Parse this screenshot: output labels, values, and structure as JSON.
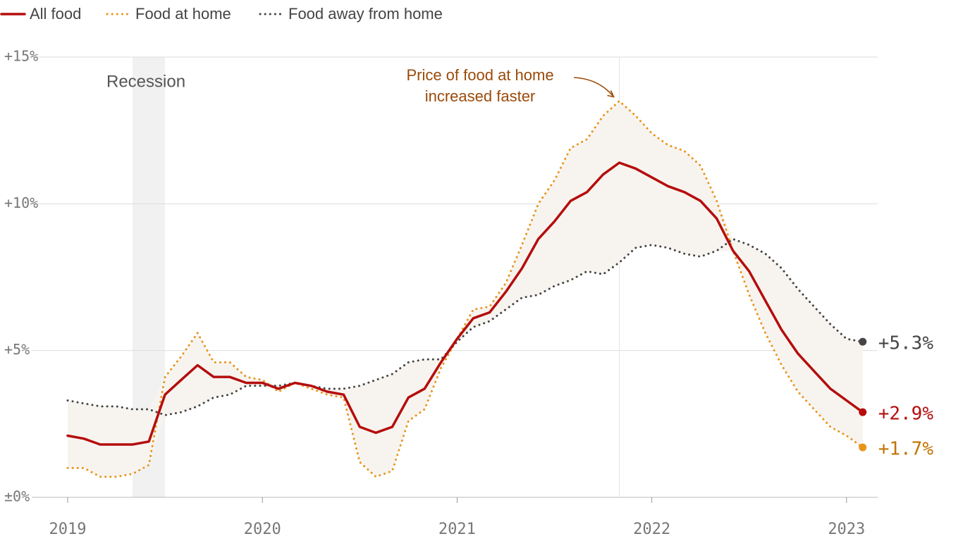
{
  "chart_data": {
    "type": "line",
    "x": [
      2019,
      2019.083,
      2019.167,
      2019.25,
      2019.333,
      2019.417,
      2019.5,
      2019.583,
      2019.667,
      2019.75,
      2019.833,
      2019.917,
      2020,
      2020.083,
      2020.167,
      2020.25,
      2020.333,
      2020.417,
      2020.5,
      2020.583,
      2020.667,
      2020.75,
      2020.833,
      2020.917,
      2021,
      2021.083,
      2021.167,
      2021.25,
      2021.333,
      2021.417,
      2021.5,
      2021.583,
      2021.667,
      2021.75,
      2021.833,
      2021.917,
      2022,
      2022.083,
      2022.167,
      2022.25,
      2022.333,
      2022.417,
      2022.5,
      2022.583,
      2022.667,
      2022.75,
      2022.833,
      2022.917,
      2023,
      2023.083
    ],
    "series": [
      {
        "name": "All food",
        "color": "#b50d0d",
        "dash": "solid",
        "end_label": "+2.9%",
        "label_color": "#b50d0d",
        "values": [
          2.1,
          2.0,
          1.8,
          1.8,
          1.8,
          1.9,
          3.5,
          4.0,
          4.5,
          4.1,
          4.1,
          3.9,
          3.9,
          3.7,
          3.9,
          3.8,
          3.6,
          3.5,
          2.4,
          2.2,
          2.4,
          3.4,
          3.7,
          4.6,
          5.4,
          6.1,
          6.3,
          7.0,
          7.8,
          8.8,
          9.4,
          10.1,
          10.4,
          11.0,
          11.4,
          11.2,
          10.9,
          10.6,
          10.4,
          10.1,
          9.5,
          8.4,
          7.7,
          6.7,
          5.7,
          4.9,
          4.3,
          3.7,
          3.3,
          2.9
        ]
      },
      {
        "name": "Food at home",
        "color": "#e8941a",
        "dash": "dotted",
        "end_label": "+1.7%",
        "label_color": "#c27400",
        "values": [
          1.0,
          1.0,
          0.7,
          0.7,
          0.8,
          1.1,
          4.1,
          4.8,
          5.6,
          4.6,
          4.6,
          4.1,
          4.0,
          3.6,
          3.9,
          3.7,
          3.5,
          3.4,
          1.2,
          0.7,
          0.9,
          2.6,
          3.0,
          4.4,
          5.4,
          6.4,
          6.5,
          7.3,
          8.6,
          10.0,
          10.8,
          11.9,
          12.2,
          13.0,
          13.5,
          13.0,
          12.4,
          12.0,
          11.8,
          11.3,
          10.1,
          8.4,
          6.9,
          5.6,
          4.5,
          3.6,
          3.0,
          2.4,
          2.1,
          1.7
        ]
      },
      {
        "name": "Food away from home",
        "color": "#454545",
        "dash": "dotted",
        "end_label": "+5.3%",
        "label_color": "#454545",
        "values": [
          3.3,
          3.2,
          3.1,
          3.1,
          3.0,
          3.0,
          2.8,
          2.9,
          3.1,
          3.4,
          3.5,
          3.8,
          3.8,
          3.8,
          3.9,
          3.8,
          3.7,
          3.7,
          3.8,
          4.0,
          4.2,
          4.6,
          4.7,
          4.7,
          5.3,
          5.8,
          6.0,
          6.4,
          6.8,
          6.9,
          7.2,
          7.4,
          7.7,
          7.6,
          8.0,
          8.5,
          8.6,
          8.5,
          8.3,
          8.2,
          8.4,
          8.8,
          8.6,
          8.3,
          7.8,
          7.1,
          6.5,
          5.9,
          5.4,
          5.3
        ]
      }
    ],
    "xlim": [
      2019,
      2023.16
    ],
    "xticks": [
      2019,
      2020,
      2021,
      2022,
      2023
    ],
    "ylim": [
      0,
      15
    ],
    "yticks": [
      {
        "value": 0,
        "label": "±0%"
      },
      {
        "value": 5,
        "label": "+5%"
      },
      {
        "value": 10,
        "label": "+10%"
      },
      {
        "value": 15,
        "label": "+15%"
      }
    ],
    "grid": true,
    "recession": {
      "label": "Recession",
      "start": 2019.333,
      "end": 2019.5
    },
    "annotation": {
      "lines": [
        "Price of food at home",
        "increased faster"
      ],
      "x": 2021.833,
      "y": 13.5,
      "color": "#9a4a0a"
    }
  }
}
